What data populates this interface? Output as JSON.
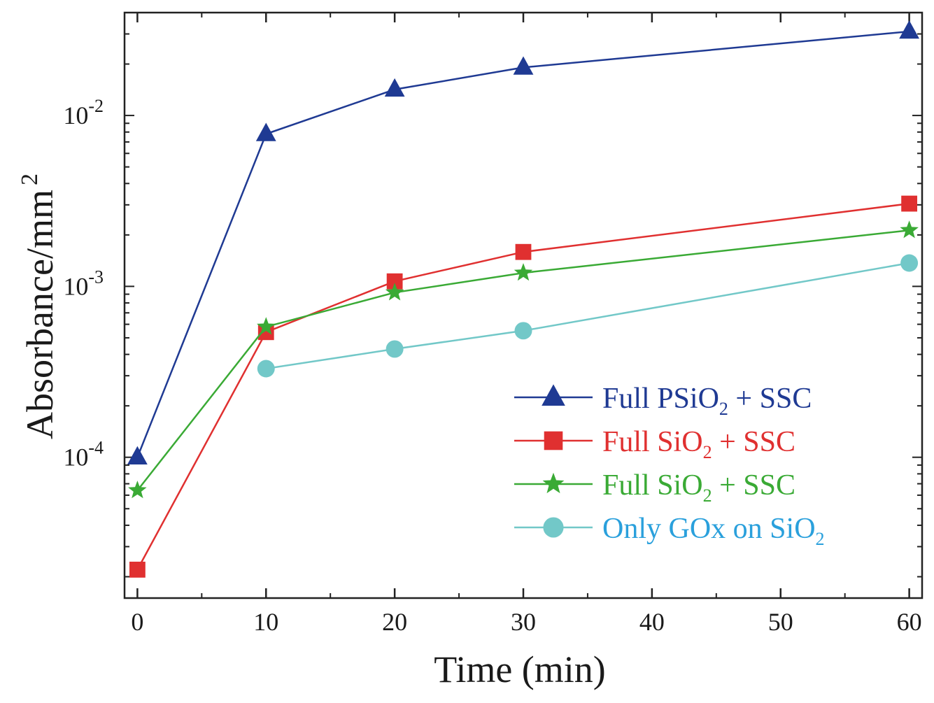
{
  "chart_data": {
    "type": "line",
    "xlabel": "Time (min)",
    "ylabel": "Absorbance/mm",
    "ylabel_sup": "2",
    "yscale": "log",
    "xlim": [
      -1,
      61
    ],
    "ylim": [
      1.5e-05,
      0.04
    ],
    "x_ticks": [
      {
        "value": 0,
        "label": "0"
      },
      {
        "value": 10,
        "label": "10"
      },
      {
        "value": 20,
        "label": "20"
      },
      {
        "value": 30,
        "label": "30"
      },
      {
        "value": 40,
        "label": "40"
      },
      {
        "value": 50,
        "label": "50"
      },
      {
        "value": 60,
        "label": "60"
      }
    ],
    "y_ticks": [
      {
        "value": 0.01,
        "base": "10",
        "exp": "-2"
      },
      {
        "value": 0.001,
        "base": "10",
        "exp": "-3"
      },
      {
        "value": 0.0001,
        "base": "10",
        "exp": "-4"
      }
    ],
    "legend_position": "bottom-right",
    "series": [
      {
        "name_parts": [
          "Full PSiO",
          "2",
          " + SSC"
        ],
        "color": "#1f3a93",
        "marker": "triangle",
        "x": [
          0,
          10,
          20,
          30,
          60
        ],
        "y": [
          0.0001,
          0.0078,
          0.0142,
          0.0191,
          0.031
        ]
      },
      {
        "name_parts": [
          "Full SiO",
          "2",
          " + SSC"
        ],
        "color": "#e03030",
        "marker": "square",
        "x": [
          0,
          10,
          20,
          30,
          60
        ],
        "y": [
          2.2e-05,
          0.00054,
          0.00107,
          0.00159,
          0.00305
        ]
      },
      {
        "name_parts": [
          "Full SiO",
          "2",
          " + SSC"
        ],
        "color": "#3aaa35",
        "marker": "star",
        "x": [
          0,
          10,
          20,
          30,
          60
        ],
        "y": [
          6.4e-05,
          0.00058,
          0.00092,
          0.0012,
          0.00213
        ]
      },
      {
        "name_parts": [
          "Only GOx on SiO",
          "2",
          ""
        ],
        "color": "#72c8c8",
        "text_color": "#2aa0dc",
        "marker": "circle",
        "x": [
          10,
          20,
          30,
          60
        ],
        "y": [
          0.00033,
          0.00043,
          0.00055,
          0.00137
        ]
      }
    ]
  }
}
